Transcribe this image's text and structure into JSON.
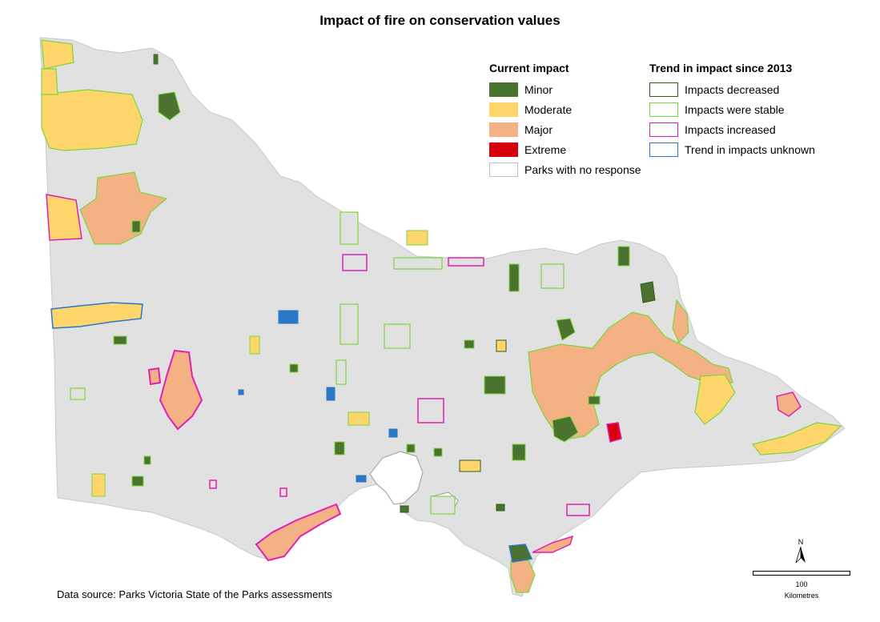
{
  "title": "Impact of fire on conservation values",
  "legend_current": {
    "heading": "Current impact",
    "items": [
      {
        "label": "Minor",
        "fill": "#4a7330",
        "stroke": "#4a7330"
      },
      {
        "label": "Moderate",
        "fill": "#fdd56a",
        "stroke": "#fdd56a"
      },
      {
        "label": "Major",
        "fill": "#f4b183",
        "stroke": "#f4b183"
      },
      {
        "label": "Extreme",
        "fill": "#d7000f",
        "stroke": "#d7000f"
      },
      {
        "label": "Parks with no response",
        "fill": "#ffffff",
        "stroke": "#bfbfbf"
      }
    ]
  },
  "legend_trend": {
    "heading": "Trend in impact since 2013",
    "items": [
      {
        "label": "Impacts decreased",
        "stroke": "#2e5e1e"
      },
      {
        "label": "Impacts were stable",
        "stroke": "#7dd63c"
      },
      {
        "label": "Impacts increased",
        "stroke": "#e020b4"
      },
      {
        "label": "Trend in impacts unknown",
        "stroke": "#2a78c8"
      }
    ]
  },
  "source": "Data source: Parks Victoria State of the Parks assessments",
  "scale": {
    "value": "100",
    "unit": "Kilometres"
  },
  "north": "N",
  "colors": {
    "land": "#e1e1e1",
    "minor": "#4a7330",
    "moderate": "#fdd56a",
    "major": "#f4b183",
    "extreme": "#d7000f",
    "stable": "#7dd63c",
    "increased": "#e020b4",
    "decreased": "#2e5e1e",
    "unknown": "#2a78c8"
  }
}
